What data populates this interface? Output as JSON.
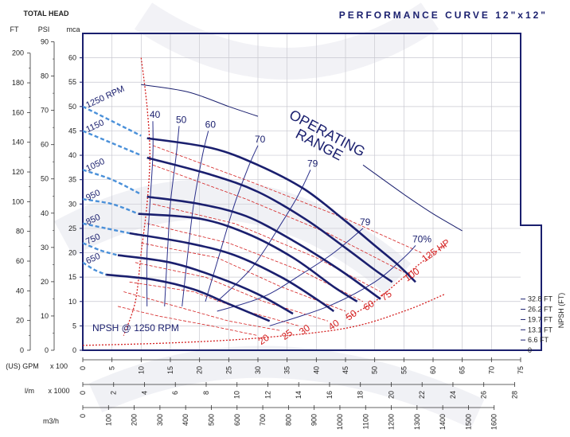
{
  "header": {
    "total_head": "TOTAL HEAD",
    "ft": "FT",
    "psi": "PSI",
    "mca": "mca",
    "gpm": "(US) GPM",
    "gpm_mult": "x 100",
    "lm": "l/m",
    "lm_mult": "x 1000",
    "m3h": "m3/h",
    "npsh_axis": "NPSH (FT)"
  },
  "chart_data": {
    "type": "line",
    "title": "PERFORMANCE CURVE 12\"x12\"",
    "operating_range": [
      "OPERATING",
      "RANGE"
    ],
    "npsh_label": "NPSH @ 1250 RPM",
    "colors": {
      "head": "#1a1f6e",
      "eff": "#2a2f8a",
      "hp": "#d42020",
      "dash_blue": "#4a90d9",
      "grid": "#c8c8d0",
      "frame": "#1a1f6e"
    },
    "axes": {
      "x_gpm": {
        "range": [
          0,
          75
        ],
        "ticks": [
          0,
          5,
          10,
          15,
          20,
          25,
          30,
          35,
          40,
          45,
          50,
          55,
          60,
          65,
          70,
          75
        ]
      },
      "x_lm": {
        "range": [
          0,
          28.39
        ],
        "ticks": [
          0,
          2,
          4,
          6,
          8,
          10,
          12,
          14,
          16,
          18,
          20,
          22,
          24,
          26,
          28
        ]
      },
      "x_m3h": {
        "range": [
          0,
          1703
        ],
        "ticks": [
          0,
          100,
          200,
          300,
          400,
          500,
          600,
          700,
          800,
          900,
          1000,
          1100,
          1200,
          1300,
          1400,
          1500,
          1600
        ]
      },
      "y_mca": {
        "range": [
          0,
          65
        ],
        "ticks": [
          0,
          5,
          10,
          15,
          20,
          25,
          30,
          35,
          40,
          45,
          50,
          55,
          60
        ]
      },
      "y_ft": {
        "range": [
          0,
          213.25
        ],
        "ticks": [
          0,
          20,
          40,
          60,
          80,
          100,
          120,
          140,
          160,
          180,
          200
        ]
      },
      "y_psi": {
        "range": [
          0,
          92.45
        ],
        "ticks": [
          0,
          10,
          20,
          30,
          40,
          50,
          60,
          70,
          80,
          90
        ]
      },
      "npsh_ticks": [
        "0",
        "6.6 FT",
        "13.1 FT",
        "19.7 FT",
        "26.2 FT",
        "32.8 FT"
      ],
      "npsh_values_mca": [
        0,
        2,
        4,
        6,
        8,
        10
      ]
    },
    "head_curves": [
      {
        "rpm": "1250 RPM",
        "dashed": [
          [
            0,
            50
          ],
          [
            5,
            47
          ],
          [
            10,
            44
          ]
        ],
        "solid": [
          [
            11,
            43.5
          ],
          [
            22,
            41.5
          ],
          [
            30,
            38
          ],
          [
            38,
            33
          ],
          [
            45,
            26.5
          ],
          [
            50,
            21.5
          ],
          [
            54,
            17.5
          ],
          [
            57,
            14
          ]
        ]
      },
      {
        "rpm": "1150",
        "dashed": [
          [
            0,
            45
          ],
          [
            5,
            42.5
          ],
          [
            10,
            40
          ]
        ],
        "solid": [
          [
            11,
            39.5
          ],
          [
            22,
            36
          ],
          [
            30,
            32.5
          ],
          [
            38,
            27
          ],
          [
            45,
            21
          ],
          [
            50,
            16.5
          ],
          [
            53,
            14
          ]
        ]
      },
      {
        "rpm": "1050",
        "dashed": [
          [
            0,
            37
          ],
          [
            5,
            35
          ],
          [
            10,
            32
          ]
        ],
        "solid": [
          [
            11,
            31.5
          ],
          [
            20,
            30
          ],
          [
            28,
            27.5
          ],
          [
            36,
            22.5
          ],
          [
            44,
            16.5
          ],
          [
            51,
            10.5
          ]
        ]
      },
      {
        "rpm": "950",
        "dashed": [
          [
            0,
            31
          ],
          [
            5,
            30
          ],
          [
            9.5,
            28
          ]
        ],
        "solid": [
          [
            9.5,
            28
          ],
          [
            20,
            27
          ],
          [
            28,
            24
          ],
          [
            36,
            19
          ],
          [
            43,
            13
          ],
          [
            47,
            10
          ]
        ]
      },
      {
        "rpm": "850",
        "dashed": [
          [
            0,
            26
          ],
          [
            4,
            25
          ],
          [
            8,
            24
          ]
        ],
        "solid": [
          [
            8,
            24
          ],
          [
            18,
            22
          ],
          [
            26,
            19.5
          ],
          [
            34,
            15
          ],
          [
            40,
            10.5
          ],
          [
            43,
            8
          ]
        ]
      },
      {
        "rpm": "750",
        "dashed": [
          [
            0,
            22
          ],
          [
            3,
            20.5
          ],
          [
            6,
            19.5
          ]
        ],
        "solid": [
          [
            6,
            19.5
          ],
          [
            15,
            18
          ],
          [
            23,
            15
          ],
          [
            30,
            11.5
          ],
          [
            36,
            7.5
          ]
        ]
      },
      {
        "rpm": "650",
        "dashed": [
          [
            0,
            18
          ],
          [
            2,
            16.5
          ],
          [
            4,
            15.5
          ]
        ],
        "solid": [
          [
            4,
            15.5
          ],
          [
            12,
            14.5
          ],
          [
            19,
            12.5
          ],
          [
            25,
            9.5
          ],
          [
            32,
            6
          ]
        ]
      }
    ],
    "eff_curves": [
      {
        "label": "40",
        "points": [
          [
            11,
            9
          ],
          [
            11,
            20
          ],
          [
            11.5,
            30
          ],
          [
            12,
            40
          ],
          [
            12,
            47
          ]
        ]
      },
      {
        "label": "50",
        "points": [
          [
            14,
            9
          ],
          [
            14.5,
            20
          ],
          [
            15,
            30
          ],
          [
            16,
            40
          ],
          [
            16.5,
            46
          ]
        ]
      },
      {
        "label": "60",
        "points": [
          [
            17,
            9
          ],
          [
            18,
            20
          ],
          [
            19,
            30
          ],
          [
            20.5,
            40
          ],
          [
            21.5,
            45
          ]
        ]
      },
      {
        "label": "70",
        "points": [
          [
            21,
            10
          ],
          [
            23.5,
            20
          ],
          [
            26,
            30
          ],
          [
            28.5,
            38
          ],
          [
            30,
            42
          ]
        ]
      },
      {
        "label": "79",
        "points": [
          [
            23,
            10
          ],
          [
            29,
            17
          ],
          [
            34,
            26
          ],
          [
            37,
            32
          ],
          [
            39,
            37
          ]
        ]
      },
      {
        "label": "79",
        "points": [
          [
            23,
            8
          ],
          [
            31,
            11
          ],
          [
            38,
            16
          ],
          [
            43,
            20
          ],
          [
            48,
            25
          ]
        ]
      },
      {
        "label": "70%",
        "points": [
          [
            32,
            5
          ],
          [
            42,
            9
          ],
          [
            50,
            14
          ],
          [
            55,
            19
          ],
          [
            57,
            21.5
          ]
        ]
      }
    ],
    "hp_lines": [
      {
        "label": "125 HP",
        "points": [
          [
            12,
            42
          ],
          [
            30,
            34
          ],
          [
            45,
            27
          ],
          [
            58,
            20
          ]
        ]
      },
      {
        "label": "100",
        "points": [
          [
            12,
            38
          ],
          [
            28,
            31
          ],
          [
            42,
            24
          ],
          [
            55,
            16
          ]
        ]
      },
      {
        "label": "75",
        "points": [
          [
            12,
            30
          ],
          [
            26,
            26
          ],
          [
            40,
            19
          ],
          [
            51,
            12
          ]
        ]
      },
      {
        "label": "60",
        "points": [
          [
            11,
            26
          ],
          [
            25,
            22
          ],
          [
            38,
            16
          ],
          [
            48,
            10
          ]
        ]
      },
      {
        "label": "50",
        "points": [
          [
            10,
            22
          ],
          [
            23,
            19
          ],
          [
            34,
            13
          ],
          [
            45,
            8
          ]
        ]
      },
      {
        "label": "40",
        "points": [
          [
            9,
            18
          ],
          [
            21,
            15
          ],
          [
            31,
            10
          ],
          [
            42,
            6
          ]
        ]
      },
      {
        "label": "30",
        "points": [
          [
            8,
            14
          ],
          [
            19,
            12
          ],
          [
            28,
            8
          ],
          [
            37,
            5
          ]
        ]
      },
      {
        "label": "25",
        "points": [
          [
            7,
            12
          ],
          [
            16,
            9
          ],
          [
            25,
            6
          ],
          [
            34,
            4
          ]
        ]
      },
      {
        "label": "20",
        "points": [
          [
            6,
            9
          ],
          [
            13,
            7
          ],
          [
            22,
            5
          ],
          [
            30,
            3
          ]
        ]
      }
    ],
    "limit_curves": [
      {
        "name": "min-flow",
        "points": [
          [
            10,
            60
          ],
          [
            11,
            50
          ],
          [
            11.5,
            40
          ],
          [
            11,
            30
          ],
          [
            10,
            20
          ],
          [
            9,
            10
          ],
          [
            7,
            3
          ]
        ]
      },
      {
        "name": "max-flow",
        "points": [
          [
            62,
            21.5
          ],
          [
            58,
            18
          ],
          [
            54,
            14
          ],
          [
            50,
            10
          ],
          [
            45,
            6.5
          ]
        ]
      },
      {
        "name": "npsh",
        "points": [
          [
            0,
            1
          ],
          [
            15,
            1.5
          ],
          [
            30,
            2.5
          ],
          [
            45,
            4.5
          ],
          [
            55,
            8
          ],
          [
            62,
            11.5
          ]
        ]
      }
    ],
    "operating_range_lines": [
      {
        "points": [
          [
            10,
            54.5
          ],
          [
            18,
            53
          ],
          [
            25,
            50
          ],
          [
            30,
            48
          ]
        ]
      },
      {
        "points": [
          [
            48,
            38
          ],
          [
            55,
            32
          ],
          [
            60,
            28
          ],
          [
            65,
            24.5
          ]
        ]
      }
    ],
    "legend_placement": "inline-labels",
    "grid": true
  }
}
